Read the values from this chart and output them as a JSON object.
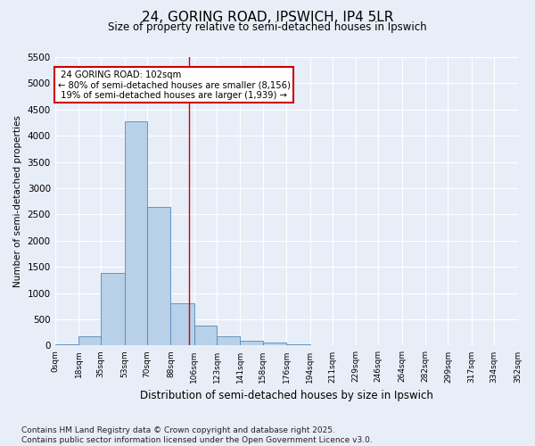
{
  "title_line1": "24, GORING ROAD, IPSWICH, IP4 5LR",
  "title_line2": "Size of property relative to semi-detached houses in Ipswich",
  "xlabel": "Distribution of semi-detached houses by size in Ipswich",
  "ylabel": "Number of semi-detached properties",
  "property_size": 102,
  "property_label": "24 GORING ROAD: 102sqm",
  "pct_smaller": 80,
  "pct_larger": 19,
  "count_smaller": 8156,
  "count_larger": 1939,
  "bar_color": "#b8d0e8",
  "bar_edge_color": "#5588bb",
  "vline_color": "#cc0000",
  "annotation_box_color": "#cc0000",
  "background_color": "#e8eef8",
  "grid_color": "#ffffff",
  "bin_edges": [
    0,
    18,
    35,
    53,
    70,
    88,
    106,
    123,
    141,
    158,
    176,
    194,
    211,
    229,
    246,
    264,
    282,
    299,
    317,
    334,
    352
  ],
  "bin_labels": [
    "0sqm",
    "18sqm",
    "35sqm",
    "53sqm",
    "70sqm",
    "88sqm",
    "106sqm",
    "123sqm",
    "141sqm",
    "158sqm",
    "176sqm",
    "194sqm",
    "211sqm",
    "229sqm",
    "246sqm",
    "264sqm",
    "282sqm",
    "299sqm",
    "317sqm",
    "334sqm",
    "352sqm"
  ],
  "bar_heights": [
    25,
    175,
    1380,
    4280,
    2650,
    800,
    380,
    170,
    95,
    60,
    20,
    10,
    5,
    3,
    2,
    1,
    1,
    0,
    0,
    0
  ],
  "ylim": [
    0,
    5500
  ],
  "yticks": [
    0,
    500,
    1000,
    1500,
    2000,
    2500,
    3000,
    3500,
    4000,
    4500,
    5000,
    5500
  ],
  "footnote": "Contains HM Land Registry data © Crown copyright and database right 2025.\nContains public sector information licensed under the Open Government Licence v3.0.",
  "footnote_fontsize": 6.5,
  "title1_fontsize": 11,
  "title2_fontsize": 8.5,
  "ylabel_fontsize": 7.5,
  "xlabel_fontsize": 8.5
}
